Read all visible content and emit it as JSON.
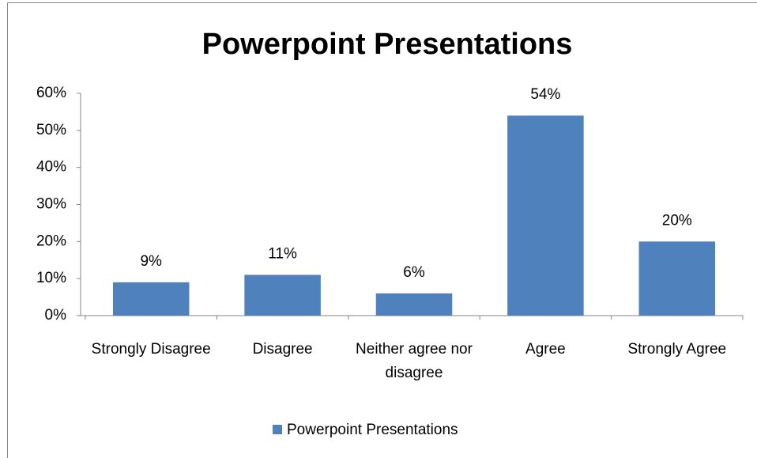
{
  "chart_data": {
    "type": "bar",
    "title": "Powerpoint Presentations",
    "categories": [
      "Strongly Disagree",
      "Disagree",
      "Neither agree nor disagree",
      "Agree",
      "Strongly Agree"
    ],
    "series": [
      {
        "name": "Powerpoint Presentations",
        "color": "#4f81bd",
        "values": [
          9,
          11,
          6,
          54,
          20
        ],
        "value_labels": [
          "9%",
          "11%",
          "6%",
          "54%",
          "20%"
        ]
      }
    ],
    "ylim": [
      0,
      60
    ],
    "yticks": [
      {
        "value": 0,
        "label": "0%"
      },
      {
        "value": 10,
        "label": "10%"
      },
      {
        "value": 20,
        "label": "20%"
      },
      {
        "value": 30,
        "label": "30%"
      },
      {
        "value": 40,
        "label": "40%"
      },
      {
        "value": 50,
        "label": "50%"
      },
      {
        "value": 60,
        "label": "60%"
      }
    ],
    "legend": "bottom"
  }
}
